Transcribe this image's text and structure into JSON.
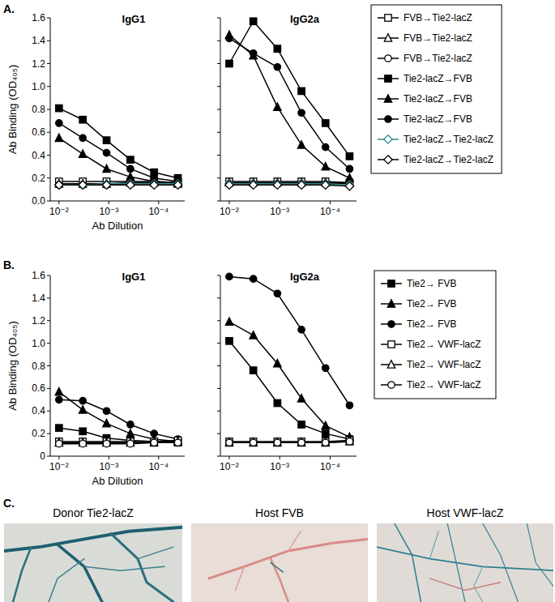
{
  "panels": [
    "A.",
    "B.",
    "C."
  ],
  "chart_data": [
    {
      "type": "line",
      "title": "IgG1",
      "xlabel": "Ab Dilution",
      "ylabel": "Ab Binding (OD₄₀₅)",
      "log": "x",
      "x": [
        0.01,
        0.003333,
        0.001111,
        0.00037,
        0.0001235,
        4.115e-05
      ],
      "xlim": [
        0.015,
        3e-05
      ],
      "xticks": [
        {
          "value": 0.01,
          "label": "10⁻²"
        },
        {
          "value": 0.001,
          "label": "10⁻³"
        },
        {
          "value": 0.0001,
          "label": "10⁻⁴"
        }
      ],
      "ylim": [
        0,
        1.6
      ],
      "yticks": [
        {
          "value": 0,
          "label": "0.0"
        },
        0.2,
        0.4,
        0.6,
        0.8,
        {
          "value": 1,
          "label": "1.0"
        },
        1.2,
        1.4,
        1.6
      ],
      "series": [
        {
          "marker": "open-square",
          "color": "#000000",
          "values": [
            0.17,
            0.17,
            0.17,
            0.17,
            0.17,
            0.16
          ]
        },
        {
          "marker": "open-triangle",
          "color": "#000000",
          "values": [
            0.15,
            0.15,
            0.15,
            0.16,
            0.16,
            0.15
          ]
        },
        {
          "marker": "open-circle",
          "color": "#000000",
          "values": [
            0.14,
            0.14,
            0.14,
            0.15,
            0.15,
            0.15
          ]
        },
        {
          "marker": "square",
          "color": "#000000",
          "values": [
            0.81,
            0.71,
            0.53,
            0.36,
            0.25,
            0.2
          ]
        },
        {
          "marker": "triangle",
          "color": "#000000",
          "values": [
            0.55,
            0.41,
            0.28,
            0.21,
            0.17,
            0.16
          ]
        },
        {
          "marker": "circle",
          "color": "#000000",
          "values": [
            0.68,
            0.55,
            0.42,
            0.28,
            0.2,
            0.17
          ]
        },
        {
          "marker": "open-diamond",
          "color": "#2e8b8b",
          "values": [
            0.14,
            0.14,
            0.15,
            0.15,
            0.15,
            0.15
          ]
        },
        {
          "marker": "open-diamond",
          "color": "#000000",
          "values": [
            0.14,
            0.14,
            0.14,
            0.14,
            0.14,
            0.14
          ]
        }
      ]
    },
    {
      "type": "line",
      "title": "IgG2a",
      "log": "x",
      "tick_labels": "x",
      "legend": "right",
      "x": [
        0.01,
        0.003333,
        0.001111,
        0.00037,
        0.0001235,
        4.115e-05
      ],
      "xlim": [
        0.015,
        3e-05
      ],
      "xticks": [
        {
          "value": 0.01,
          "label": "10⁻²"
        },
        {
          "value": 0.001,
          "label": "10⁻³"
        },
        {
          "value": 0.0001,
          "label": "10⁻⁴"
        }
      ],
      "ylim": [
        0,
        1.6
      ],
      "yticks": [
        0,
        0.2,
        0.4,
        0.6,
        0.8,
        1,
        1.2,
        1.4,
        1.6
      ],
      "series": [
        {
          "name": "FVB→Tie2-lacZ",
          "marker": "open-square",
          "color": "#000000",
          "values": [
            0.17,
            0.17,
            0.17,
            0.17,
            0.17,
            0.16
          ]
        },
        {
          "name": "FVB→Tie2-lacZ",
          "marker": "open-triangle",
          "color": "#000000",
          "values": [
            0.16,
            0.16,
            0.16,
            0.16,
            0.16,
            0.16
          ]
        },
        {
          "name": "FVB→Tie2-lacZ",
          "marker": "open-circle",
          "color": "#000000",
          "values": [
            0.15,
            0.15,
            0.15,
            0.15,
            0.15,
            0.15
          ]
        },
        {
          "name": "Tie2-lacZ→FVB",
          "marker": "square",
          "color": "#000000",
          "values": [
            1.2,
            1.57,
            1.33,
            0.96,
            0.68,
            0.39
          ]
        },
        {
          "name": "Tie2-lacZ→FVB",
          "marker": "triangle",
          "color": "#000000",
          "values": [
            1.45,
            1.27,
            0.82,
            0.49,
            0.3,
            0.2
          ]
        },
        {
          "name": "Tie2-lacZ→FVB",
          "marker": "circle",
          "color": "#000000",
          "values": [
            1.42,
            1.29,
            1.17,
            0.77,
            0.47,
            0.28
          ]
        },
        {
          "name": "Tie2-lacZ→Tie2-lacZ",
          "marker": "open-diamond",
          "color": "#2e8b8b",
          "values": [
            0.15,
            0.15,
            0.15,
            0.15,
            0.15,
            0.14
          ]
        },
        {
          "name": "Tie2-lacZ→Tie2-lacZ",
          "marker": "open-diamond",
          "color": "#000000",
          "values": [
            0.14,
            0.14,
            0.14,
            0.14,
            0.14,
            0.13
          ]
        }
      ]
    },
    {
      "type": "line",
      "title": "IgG1",
      "xlabel": "Ab Dilution",
      "ylabel": "Ab Binding (OD₄₀₅)",
      "log": "x",
      "x": [
        0.01,
        0.003333,
        0.001111,
        0.00037,
        0.0001235,
        4.115e-05
      ],
      "xlim": [
        0.015,
        3e-05
      ],
      "xticks": [
        {
          "value": 0.01,
          "label": "10⁻²"
        },
        {
          "value": 0.001,
          "label": "10⁻³"
        },
        {
          "value": 0.0001,
          "label": "10⁻⁴"
        }
      ],
      "ylim": [
        0,
        1.6
      ],
      "yticks": [
        0,
        0.2,
        0.4,
        0.6,
        0.8,
        {
          "value": 1,
          "label": "1.0"
        },
        1.2,
        1.4,
        1.6
      ],
      "series": [
        {
          "marker": "square",
          "color": "#000000",
          "values": [
            0.25,
            0.22,
            0.16,
            0.14,
            0.13,
            0.12
          ]
        },
        {
          "marker": "triangle",
          "color": "#000000",
          "values": [
            0.57,
            0.41,
            0.29,
            0.2,
            0.15,
            0.13
          ]
        },
        {
          "marker": "circle",
          "color": "#000000",
          "values": [
            0.5,
            0.49,
            0.4,
            0.28,
            0.2,
            0.15
          ]
        },
        {
          "marker": "open-square",
          "color": "#000000",
          "values": [
            0.13,
            0.13,
            0.13,
            0.13,
            0.13,
            0.14
          ]
        },
        {
          "marker": "open-triangle",
          "color": "#000000",
          "values": [
            0.12,
            0.12,
            0.12,
            0.12,
            0.12,
            0.13
          ]
        },
        {
          "marker": "open-circle",
          "color": "#000000",
          "values": [
            0.11,
            0.11,
            0.11,
            0.11,
            0.12,
            0.12
          ]
        }
      ]
    },
    {
      "type": "line",
      "title": "IgG2a",
      "log": "x",
      "tick_labels": "x",
      "legend": "right",
      "x": [
        0.01,
        0.003333,
        0.001111,
        0.00037,
        0.0001235,
        4.115e-05
      ],
      "xlim": [
        0.015,
        3e-05
      ],
      "xticks": [
        {
          "value": 0.01,
          "label": "10⁻²"
        },
        {
          "value": 0.001,
          "label": "10⁻³"
        },
        {
          "value": 0.0001,
          "label": "10⁻⁴"
        }
      ],
      "ylim": [
        0,
        1.6
      ],
      "yticks": [
        0,
        0.2,
        0.4,
        0.6,
        0.8,
        1,
        1.2,
        1.4,
        1.6
      ],
      "series": [
        {
          "name": "Tie2→ FVB",
          "marker": "square",
          "color": "#000000",
          "values": [
            1.02,
            0.76,
            0.47,
            0.28,
            0.2,
            0.15
          ]
        },
        {
          "name": "Tie2→ FVB",
          "marker": "triangle",
          "color": "#000000",
          "values": [
            1.19,
            1.07,
            0.82,
            0.51,
            0.27,
            0.17
          ]
        },
        {
          "name": "Tie2→ FVB",
          "marker": "circle",
          "color": "#000000",
          "values": [
            1.59,
            1.57,
            1.44,
            1.12,
            0.78,
            0.45
          ]
        },
        {
          "name": "Tie2→ VWF-lacZ",
          "marker": "open-square",
          "color": "#000000",
          "values": [
            0.13,
            0.13,
            0.13,
            0.13,
            0.13,
            0.14
          ]
        },
        {
          "name": "Tie2→ VWF-lacZ",
          "marker": "open-triangle",
          "color": "#000000",
          "values": [
            0.12,
            0.12,
            0.12,
            0.12,
            0.12,
            0.13
          ]
        },
        {
          "name": "Tie2→ VWF-lacZ",
          "marker": "open-circle",
          "color": "#000000",
          "values": [
            0.12,
            0.12,
            0.12,
            0.12,
            0.12,
            0.13
          ]
        }
      ]
    }
  ],
  "images": [
    {
      "caption": "Donor Tie2-lacZ"
    },
    {
      "caption": "Host FVB"
    },
    {
      "caption": "Host VWF-lacZ"
    }
  ]
}
